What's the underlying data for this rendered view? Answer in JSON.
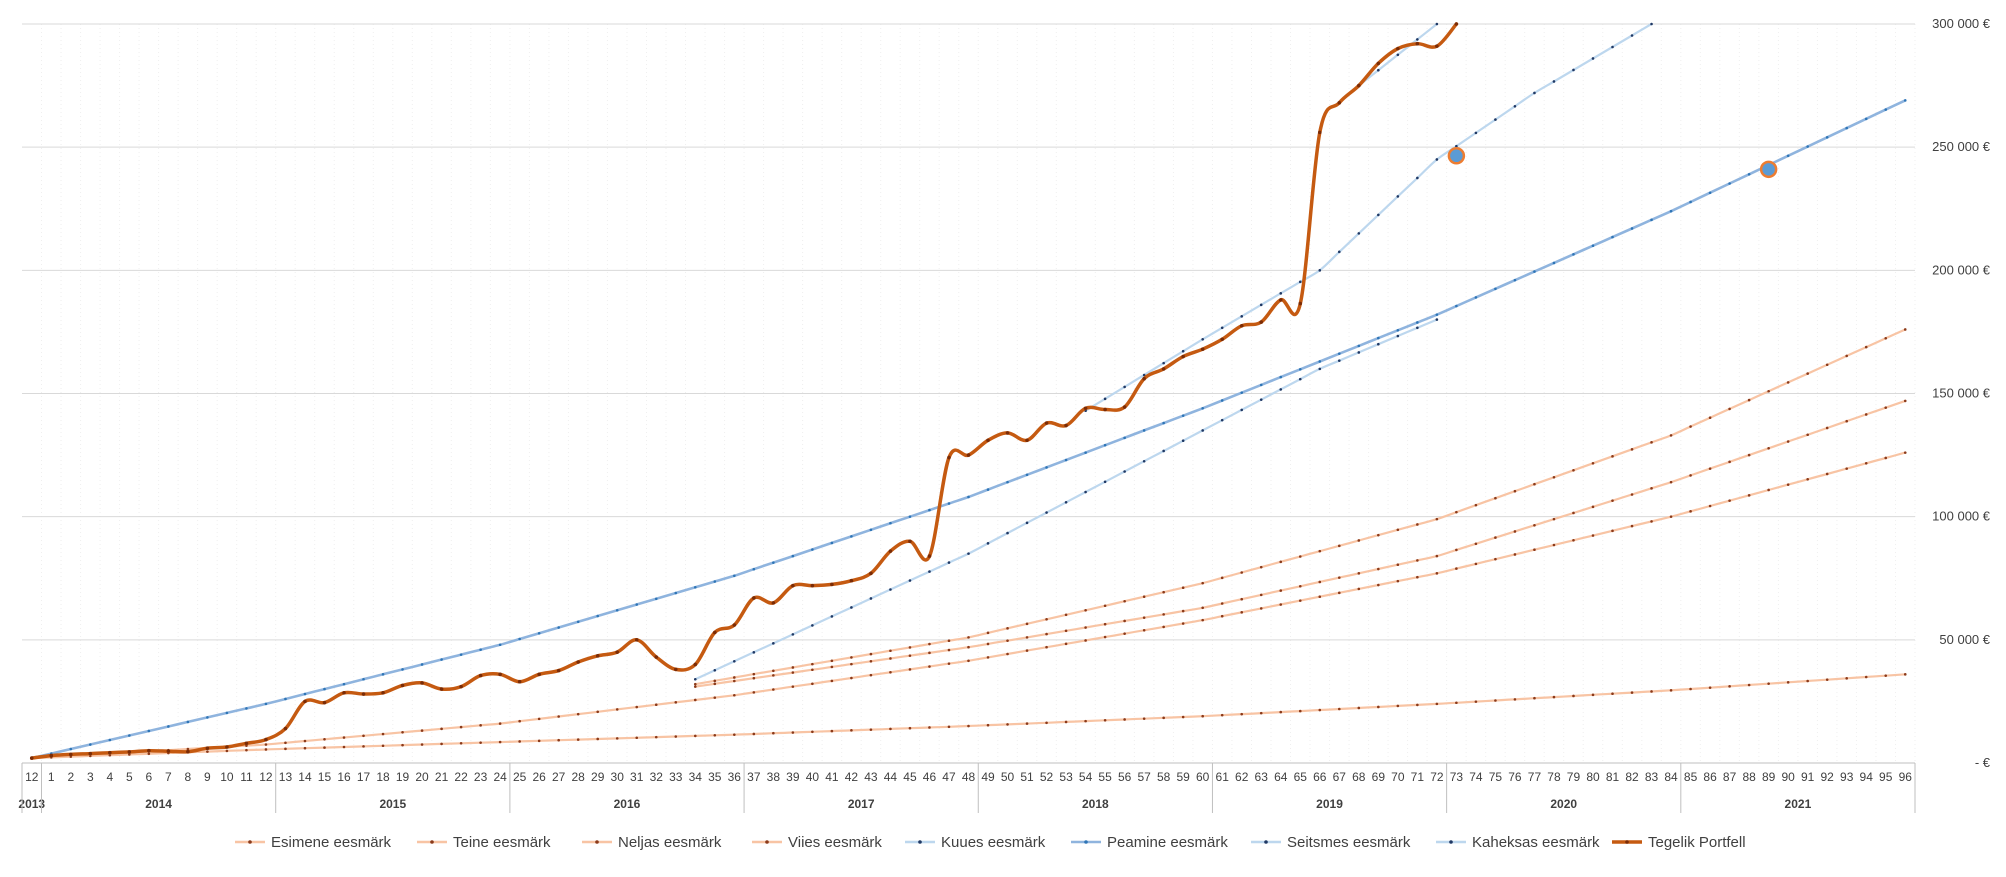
{
  "chart_data": {
    "type": "line",
    "title": "",
    "xlabel": "",
    "ylabel": "",
    "ylim": [
      0,
      300000
    ],
    "yticks": [
      {
        "value": 0,
        "label": "-  €"
      },
      {
        "value": 50000,
        "label": "50 000 €"
      },
      {
        "value": 100000,
        "label": "100 000 €"
      },
      {
        "value": 150000,
        "label": "150 000 €"
      },
      {
        "value": 200000,
        "label": "200 000 €"
      },
      {
        "value": 250000,
        "label": "250 000 €"
      },
      {
        "value": 300000,
        "label": "300 000 €"
      }
    ],
    "x_start_label": "12",
    "x_months": "1..96",
    "years": [
      {
        "label": "2013",
        "from": 0,
        "to": 0
      },
      {
        "label": "2014",
        "from": 1,
        "to": 12
      },
      {
        "label": "2015",
        "from": 13,
        "to": 24
      },
      {
        "label": "2016",
        "from": 25,
        "to": 36
      },
      {
        "label": "2017",
        "from": 37,
        "to": 48
      },
      {
        "label": "2018",
        "from": 49,
        "to": 60
      },
      {
        "label": "2019",
        "from": 61,
        "to": 72
      },
      {
        "label": "2020",
        "from": 73,
        "to": 84
      },
      {
        "label": "2021",
        "from": 85,
        "to": 96
      }
    ],
    "legend_position": "bottom",
    "series": [
      {
        "name": "Esimene eesmärk",
        "color": "#F8C4A4",
        "dot": "#8B3A1A",
        "anchors": [
          [
            0,
            2000
          ],
          [
            12,
            5500
          ],
          [
            24,
            8500
          ],
          [
            36,
            11500
          ],
          [
            48,
            15000
          ],
          [
            60,
            19000
          ],
          [
            72,
            24000
          ],
          [
            84,
            29500
          ],
          [
            96,
            36000
          ]
        ]
      },
      {
        "name": "Teine eesmärk",
        "color": "#F8C4A4",
        "dot": "#8B3A1A",
        "anchors": [
          [
            0,
            2000
          ],
          [
            12,
            7500
          ],
          [
            24,
            16000
          ],
          [
            36,
            27500
          ],
          [
            48,
            41500
          ],
          [
            60,
            58000
          ],
          [
            72,
            77000
          ],
          [
            84,
            100000
          ],
          [
            96,
            126000
          ]
        ]
      },
      {
        "name": "Neljas eesmärk",
        "color": "#F8C4A4",
        "dot": "#8B3A1A",
        "anchors": [
          [
            34,
            31000
          ],
          [
            48,
            47000
          ],
          [
            60,
            63000
          ],
          [
            72,
            84000
          ],
          [
            84,
            114000
          ],
          [
            96,
            147000
          ]
        ]
      },
      {
        "name": "Viies eesmärk",
        "color": "#F8C4A4",
        "dot": "#8B3A1A",
        "anchors": [
          [
            34,
            32000
          ],
          [
            48,
            51000
          ],
          [
            60,
            73000
          ],
          [
            72,
            99000
          ],
          [
            84,
            133000
          ],
          [
            96,
            176000
          ]
        ]
      },
      {
        "name": "Kuues eesmärk",
        "color": "#BDD7EE",
        "dot": "#1F3864",
        "anchors": [
          [
            34,
            34000
          ],
          [
            48,
            85000
          ],
          [
            60,
            135000
          ],
          [
            66,
            160000
          ],
          [
            72,
            180000
          ]
        ]
      },
      {
        "name": "Peamine eesmärk",
        "color": "#8FB4DE",
        "dot": "#2E75B6",
        "anchors": [
          [
            0,
            2000
          ],
          [
            12,
            24000
          ],
          [
            24,
            48000
          ],
          [
            36,
            76000
          ],
          [
            48,
            108000
          ],
          [
            60,
            144000
          ],
          [
            72,
            182000
          ],
          [
            84,
            224000
          ],
          [
            96,
            269000
          ]
        ]
      },
      {
        "name": "Seitsmes eesmärk",
        "color": "#BDD7EE",
        "dot": "#1F3864",
        "anchors": [
          [
            54,
            143000
          ],
          [
            60,
            172000
          ],
          [
            66,
            200000
          ],
          [
            72,
            245000
          ],
          [
            77,
            272000
          ],
          [
            83,
            300000
          ]
        ]
      },
      {
        "name": "Kaheksas eesmärk",
        "color": "#BDD7EE",
        "dot": "#1F3864",
        "anchors": [
          [
            68,
            275000
          ],
          [
            72,
            300000
          ]
        ]
      },
      {
        "name": "Tegelik Portfell",
        "color": "#C55A11",
        "dot": "#7B2C06",
        "values": [
          2000,
          3000,
          3500,
          3800,
          4200,
          4500,
          5000,
          4800,
          4600,
          6000,
          6500,
          8000,
          9500,
          14000,
          25000,
          24500,
          28500,
          28000,
          28500,
          31500,
          32500,
          30000,
          31000,
          35500,
          36000,
          33000,
          36000,
          37500,
          41000,
          43500,
          45000,
          50000,
          43000,
          38000,
          40000,
          53000,
          56000,
          67000,
          65000,
          72000,
          72000,
          72500,
          74000,
          77000,
          86000,
          90000,
          84000,
          124000,
          125000,
          131000,
          134000,
          131000,
          138000,
          137000,
          144000,
          143500,
          144500,
          156000,
          160000,
          165000,
          168000,
          172000,
          177500,
          179000,
          188000,
          186500,
          256000,
          268000,
          275000,
          284000,
          290000,
          292000,
          291000,
          300000
        ]
      }
    ],
    "highlight_points": [
      {
        "series": "Seitsmes eesmärk",
        "x": 73,
        "y": 246500
      },
      {
        "series": "Peamine eesmärk",
        "x": 89,
        "y": 241000
      }
    ]
  }
}
